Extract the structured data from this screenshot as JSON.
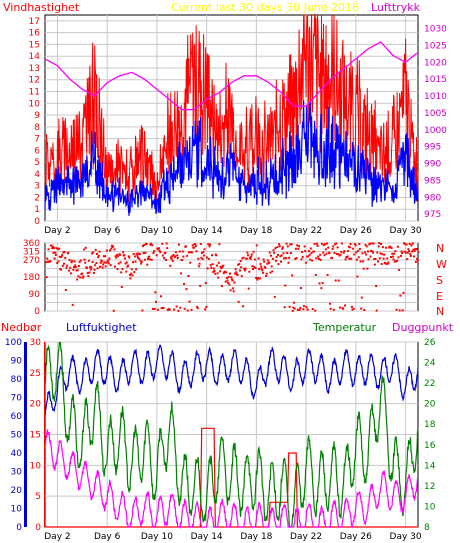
{
  "title": "Current last 30 days 30 June 2018",
  "colors": {
    "wind": "#ff0000",
    "gust": "#ff0000",
    "wind_avg": "#0000ff",
    "pressure": "#ff00ff",
    "direction": "#ff0000",
    "rain": "#ff0000",
    "humidity": "#0000cc",
    "temperature": "#008000",
    "dewpoint": "#ff00ff",
    "title": "#ffff00",
    "grid": "#c8c8c8",
    "frame": "#000000"
  },
  "panels": {
    "top": {
      "left_label": "Vindhastighet",
      "right_label": "Lufttrykk"
    },
    "middle": {
      "compass": [
        "N",
        "W",
        "S",
        "E",
        "N"
      ]
    },
    "bottom": {
      "label_rain": "Nedbør",
      "label_humidity": "Luftfuktighet",
      "label_temperature": "Temperatur",
      "label_dewpoint": "Duggpunkt"
    }
  },
  "chart_data": [
    {
      "type": "line",
      "title": "Current last 30 days 30 June 2018",
      "x_ticks": [
        "Day 2",
        "Day 6",
        "Day 10",
        "Day 14",
        "Day 18",
        "Day 22",
        "Day 26",
        "Day 30"
      ],
      "x_tick_days": [
        2,
        6,
        10,
        14,
        18,
        22,
        26,
        30
      ],
      "xlim": [
        1,
        31
      ],
      "y_left": {
        "label": "Vindhastighet",
        "lim": [
          0,
          17.5
        ],
        "ticks": [
          0,
          1,
          2,
          3,
          4,
          5,
          6,
          7,
          8,
          9,
          10,
          11,
          12,
          13,
          14,
          15,
          16,
          17
        ]
      },
      "y_right": {
        "label": "Lufttrykk",
        "lim": [
          973,
          1034
        ],
        "ticks": [
          975,
          980,
          985,
          990,
          995,
          1000,
          1005,
          1010,
          1015,
          1020,
          1025,
          1030
        ]
      },
      "series": [
        {
          "name": "Vindhastighet",
          "axis": "left",
          "role": "gust",
          "x": [
            1,
            2,
            3,
            4,
            5,
            6,
            7,
            8,
            9,
            10,
            11,
            12,
            13,
            14,
            15,
            16,
            17,
            18,
            19,
            20,
            21,
            22,
            23,
            24,
            25,
            26,
            27,
            28,
            29,
            30,
            31
          ],
          "y": [
            5,
            6,
            7,
            8,
            11,
            4,
            5,
            4,
            6,
            3,
            8,
            10,
            14,
            12,
            8,
            10,
            6,
            8,
            7,
            10,
            11,
            17,
            13,
            14,
            12,
            10,
            8,
            6,
            7,
            12,
            4
          ]
        },
        {
          "name": "Vindhastighet middel",
          "axis": "left",
          "role": "average",
          "x": [
            1,
            2,
            3,
            4,
            5,
            6,
            7,
            8,
            9,
            10,
            11,
            12,
            13,
            14,
            15,
            16,
            17,
            18,
            19,
            20,
            21,
            22,
            23,
            24,
            25,
            26,
            27,
            28,
            29,
            30,
            31
          ],
          "y": [
            2,
            3,
            3.5,
            4,
            6,
            2,
            2.5,
            2,
            3,
            1.5,
            4,
            5,
            7,
            6,
            4,
            5,
            3,
            4,
            3.5,
            5,
            5.5,
            8,
            6.5,
            7,
            6,
            5,
            4,
            3,
            3.5,
            6,
            2
          ]
        },
        {
          "name": "Lufttrykk",
          "axis": "right",
          "x": [
            1,
            2,
            3,
            4,
            5,
            6,
            7,
            8,
            9,
            10,
            11,
            12,
            13,
            14,
            15,
            16,
            17,
            18,
            19,
            20,
            21,
            22,
            23,
            24,
            25,
            26,
            27,
            28,
            29,
            30,
            31
          ],
          "y": [
            1021,
            1019,
            1015,
            1012,
            1010,
            1014,
            1016,
            1017,
            1015,
            1012,
            1009,
            1006,
            1006,
            1009,
            1011,
            1014,
            1016,
            1016,
            1014,
            1011,
            1007,
            1007,
            1011,
            1015,
            1018,
            1021,
            1024,
            1026,
            1022,
            1020,
            1023
          ]
        }
      ]
    },
    {
      "type": "scatter",
      "title": "",
      "x_ticks": [
        "Day 2",
        "Day 6",
        "Day 10",
        "Day 14",
        "Day 18",
        "Day 22",
        "Day 26",
        "Day 30"
      ],
      "xlim": [
        1,
        31
      ],
      "y_left": {
        "lim": [
          0,
          360
        ],
        "ticks": [
          0,
          45,
          90,
          135,
          180,
          225,
          270,
          315,
          360
        ]
      },
      "series": [
        {
          "name": "Vindretning",
          "x": [
            1,
            2,
            3,
            4,
            5,
            6,
            7,
            8,
            9,
            10,
            11,
            12,
            13,
            14,
            15,
            16,
            17,
            18,
            19,
            20,
            21,
            22,
            23,
            24,
            25,
            26,
            27,
            28,
            29,
            30,
            31
          ],
          "y": [
            300,
            280,
            250,
            200,
            270,
            300,
            260,
            220,
            300,
            330,
            320,
            330,
            340,
            320,
            200,
            150,
            270,
            220,
            250,
            320,
            330,
            330,
            320,
            340,
            330,
            320,
            310,
            300,
            320,
            330,
            310
          ]
        }
      ]
    },
    {
      "type": "line",
      "title": "",
      "x_ticks": [
        "Day 2",
        "Day 6",
        "Day 10",
        "Day 14",
        "Day 18",
        "Day 22",
        "Day 26",
        "Day 30"
      ],
      "xlim": [
        1,
        31
      ],
      "y_rain": {
        "label": "Nedbør",
        "lim": [
          0,
          30
        ],
        "ticks": [
          0,
          5,
          10,
          15,
          20,
          25,
          30
        ]
      },
      "y_humidity": {
        "label": "Luftfuktighet",
        "lim": [
          0,
          100
        ],
        "ticks": [
          0,
          10,
          20,
          30,
          40,
          50,
          60,
          70,
          80,
          90,
          100
        ]
      },
      "y_temperature": {
        "label": "Temperatur",
        "lim": [
          8,
          26
        ],
        "ticks": [
          8,
          10,
          12,
          14,
          16,
          18,
          20,
          22,
          24,
          26
        ]
      },
      "series": [
        {
          "name": "Nedbør",
          "axis": "rain",
          "x": [
            1,
            13.5,
            13.6,
            14.6,
            14.7,
            19.0,
            19.1,
            20.5,
            20.6,
            21.2,
            21.3,
            31
          ],
          "y": [
            0,
            0,
            16,
            16,
            0,
            0,
            4,
            4,
            12,
            12,
            0,
            0
          ]
        },
        {
          "name": "Luftfuktighet",
          "axis": "humidity",
          "x": [
            1,
            2,
            3,
            4,
            5,
            6,
            7,
            8,
            9,
            10,
            11,
            12,
            13,
            14,
            15,
            16,
            17,
            18,
            19,
            20,
            21,
            22,
            23,
            24,
            25,
            26,
            27,
            28,
            29,
            30,
            31
          ],
          "y": [
            60,
            75,
            85,
            80,
            88,
            85,
            80,
            88,
            85,
            90,
            88,
            80,
            86,
            88,
            84,
            88,
            85,
            75,
            88,
            86,
            80,
            88,
            86,
            80,
            88,
            84,
            86,
            82,
            88,
            75,
            85
          ]
        },
        {
          "name": "Temperatur",
          "axis": "temperature",
          "x": [
            1,
            2,
            3,
            4,
            5,
            6,
            7,
            8,
            9,
            10,
            11,
            12,
            13,
            14,
            15,
            16,
            17,
            18,
            19,
            20,
            21,
            22,
            23,
            24,
            25,
            26,
            27,
            28,
            29,
            30,
            31
          ],
          "y": [
            22,
            24,
            18,
            16,
            20,
            15,
            17,
            14,
            16,
            13,
            18,
            12,
            12,
            11,
            14,
            13,
            12,
            13,
            11,
            12,
            10,
            14,
            12,
            13,
            12,
            16,
            15,
            21,
            14,
            12,
            18
          ]
        },
        {
          "name": "Duggpunkt",
          "axis": "temperature",
          "x": [
            1,
            2,
            3,
            4,
            5,
            6,
            7,
            8,
            9,
            10,
            11,
            12,
            13,
            14,
            15,
            16,
            17,
            18,
            19,
            20,
            21,
            22,
            23,
            24,
            25,
            26,
            27,
            28,
            29,
            30,
            31
          ],
          "y": [
            16,
            15,
            14,
            13,
            12,
            11,
            10,
            9,
            10,
            9,
            10,
            9,
            9,
            8,
            9,
            9,
            8,
            9,
            8,
            9,
            8,
            9,
            8,
            9,
            9,
            10,
            10,
            12,
            11,
            11,
            13
          ]
        }
      ]
    }
  ]
}
